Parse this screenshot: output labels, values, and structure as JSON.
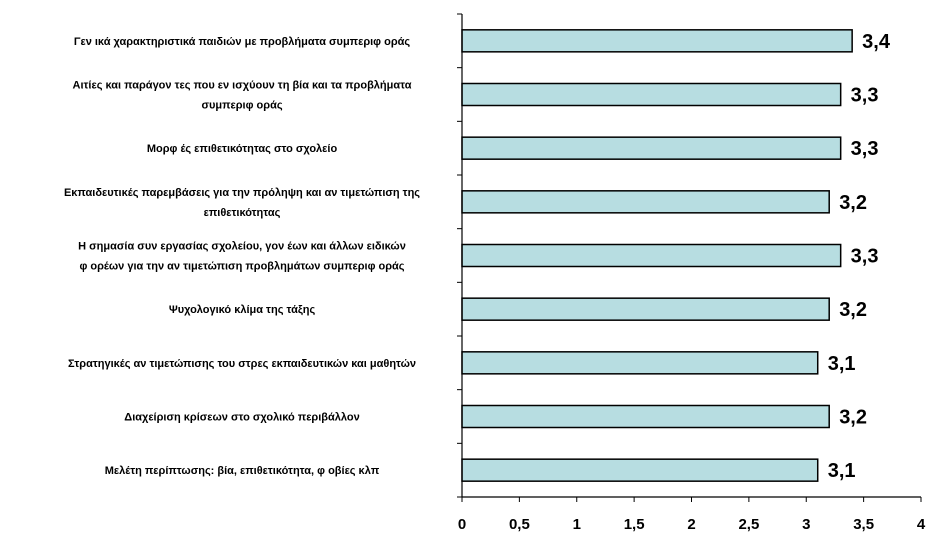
{
  "chart_data": {
    "type": "bar",
    "orientation": "horizontal",
    "categories": [
      [
        "Γεν ικά χαρακτηριστικά παιδιών με προβλήματα συμπεριφ οράς"
      ],
      [
        "Αιτίες και παράγον τες που εν ισχύουν τη βία και τα προβλήματα",
        "συμπεριφ οράς"
      ],
      [
        "Μορφ ές επιθετικότητας στο σχολείο"
      ],
      [
        "Εκπαιδευτικές παρεμβάσεις για την πρόληψη και αν τιμετώπιση της",
        "επιθετικότητας"
      ],
      [
        "Η σημασία συν εργασίας σχολείου, γον έων και άλλων ειδικών",
        "φ ορέων για την αν τιμετώπιση προβλημάτων συμπεριφ οράς"
      ],
      [
        "Ψυχολογικό κλίμα της τάξης"
      ],
      [
        "Στρατηγικές αν τιμετώπισης του στρες εκπαιδευτικών και μαθητών"
      ],
      [
        "Διαχείριση κρίσεων στο σχολικό περιβάλλον"
      ],
      [
        "Μελέτη περίπτωσης: βία, επιθετικότητα, φ οβίες κλπ"
      ]
    ],
    "values": [
      3.4,
      3.3,
      3.3,
      3.2,
      3.3,
      3.2,
      3.1,
      3.2,
      3.1
    ],
    "value_labels": [
      "3,4",
      "3,3",
      "3,3",
      "3,2",
      "3,3",
      "3,2",
      "3,1",
      "3,2",
      "3,1"
    ],
    "xlim": [
      0,
      4
    ],
    "ticks": [
      0,
      0.5,
      1,
      1.5,
      2,
      2.5,
      3,
      3.5,
      4
    ],
    "tick_labels": [
      "0",
      "0,5",
      "1",
      "1,5",
      "2",
      "2,5",
      "3",
      "3,5",
      "4"
    ],
    "grid": false,
    "legend": "none",
    "colors": {
      "bar_fill": "#b7dde1",
      "bar_stroke": "#000000",
      "axis": "#000000"
    }
  }
}
